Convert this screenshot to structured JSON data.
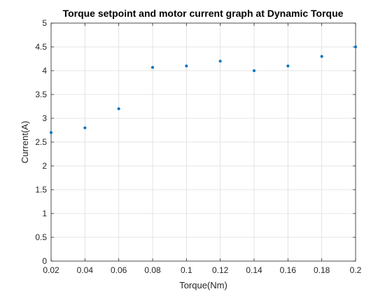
{
  "chart_data": {
    "type": "scatter",
    "title": "Torque setpoint and motor current graph at Dynamic Torque",
    "xlabel": "Torque(Nm)",
    "ylabel": "Current(A)",
    "xlim": [
      0.02,
      0.2
    ],
    "ylim": [
      0,
      5
    ],
    "xticks": [
      "0.02",
      "0.04",
      "0.06",
      "0.08",
      "0.1",
      "0.12",
      "0.14",
      "0.16",
      "0.18",
      "0.2"
    ],
    "yticks": [
      "0",
      "0.5",
      "1",
      "1.5",
      "2",
      "2.5",
      "3",
      "3.5",
      "4",
      "4.5",
      "5"
    ],
    "grid": true,
    "series": [
      {
        "color": "#0072BD",
        "points": [
          {
            "x": 0.02,
            "y": 2.7
          },
          {
            "x": 0.04,
            "y": 2.8
          },
          {
            "x": 0.06,
            "y": 3.2
          },
          {
            "x": 0.08,
            "y": 4.07
          },
          {
            "x": 0.1,
            "y": 4.1
          },
          {
            "x": 0.12,
            "y": 4.2
          },
          {
            "x": 0.14,
            "y": 4.0
          },
          {
            "x": 0.16,
            "y": 4.1
          },
          {
            "x": 0.18,
            "y": 4.3
          },
          {
            "x": 0.2,
            "y": 4.5
          }
        ]
      }
    ]
  }
}
